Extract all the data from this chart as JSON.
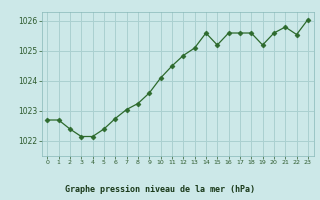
{
  "x": [
    0,
    1,
    2,
    3,
    4,
    5,
    6,
    7,
    8,
    9,
    10,
    11,
    12,
    13,
    14,
    15,
    16,
    17,
    18,
    19,
    20,
    21,
    22,
    23
  ],
  "y": [
    1022.7,
    1022.7,
    1022.4,
    1022.15,
    1022.15,
    1022.4,
    1022.75,
    1023.05,
    1023.25,
    1023.6,
    1024.1,
    1024.5,
    1024.85,
    1025.1,
    1025.6,
    1025.2,
    1025.6,
    1025.6,
    1025.6,
    1025.2,
    1025.6,
    1025.8,
    1025.55,
    1026.05
  ],
  "line_color": "#2d6a2d",
  "marker": "D",
  "marker_size": 2.5,
  "bg_color": "#cce8e8",
  "plot_bg_color": "#cce8e8",
  "grid_color": "#aad0d0",
  "xlabel": "Graphe pression niveau de la mer (hPa)",
  "xlabel_color": "#1a3a1a",
  "xlabel_bg": "#aacfcf",
  "tick_color": "#2d5a2d",
  "ylim": [
    1021.5,
    1026.3
  ],
  "yticks": [
    1022,
    1023,
    1024,
    1025,
    1026
  ],
  "xticks": [
    0,
    1,
    2,
    3,
    4,
    5,
    6,
    7,
    8,
    9,
    10,
    11,
    12,
    13,
    14,
    15,
    16,
    17,
    18,
    19,
    20,
    21,
    22,
    23
  ]
}
